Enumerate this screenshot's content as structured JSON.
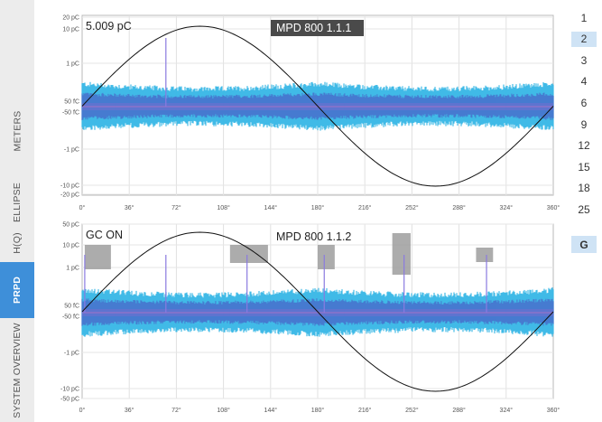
{
  "side_tabs": [
    {
      "label": "METERS",
      "active": false
    },
    {
      "label": "ELLIPSE",
      "active": false
    },
    {
      "label": "H(Q)",
      "active": false
    },
    {
      "label": "PRPD",
      "active": true
    },
    {
      "label": "SYSTEM OVERVIEW",
      "active": false
    }
  ],
  "right_buttons": [
    {
      "label": "1",
      "selected": false
    },
    {
      "label": "2",
      "selected": true
    },
    {
      "label": "3",
      "selected": false
    },
    {
      "label": "4",
      "selected": false
    },
    {
      "label": "6",
      "selected": false
    },
    {
      "label": "9",
      "selected": false
    },
    {
      "label": "12",
      "selected": false
    },
    {
      "label": "15",
      "selected": false
    },
    {
      "label": "18",
      "selected": false
    },
    {
      "label": "25",
      "selected": false
    }
  ],
  "g_button": {
    "label": "G"
  },
  "x_ticks": [
    "0°",
    "36°",
    "72°",
    "108°",
    "144°",
    "180°",
    "216°",
    "252°",
    "288°",
    "324°",
    "360°"
  ],
  "colors": {
    "accent": "#3e8fd9",
    "cloud_outer": "#38b8e6",
    "cloud_inner": "#4a62c8",
    "gate": "#9e9e9e"
  },
  "plots": [
    {
      "readout": "5.009 pC",
      "title": "MPD 800 1.1.1",
      "y_ticks": [
        "20 pC",
        "10 pC",
        "1 pC",
        "50 fC",
        "-50 fC",
        "-1 pC",
        "-10 pC",
        "-20 pC"
      ],
      "spikes_deg": [
        64
      ]
    },
    {
      "readout": "GC ON",
      "title": "MPD 800 1.1.2",
      "y_ticks": [
        "50 pC",
        "10 pC",
        "1 pC",
        "50 fC",
        "-50 fC",
        "-1 pC",
        "-10 pC",
        "-50 pC"
      ],
      "spikes_deg": [
        2,
        64,
        126,
        185,
        246,
        309
      ],
      "gates_deg": [
        [
          2,
          22
        ],
        [
          113,
          142
        ],
        [
          180,
          193
        ],
        [
          237,
          251
        ],
        [
          301,
          314
        ]
      ]
    }
  ]
}
